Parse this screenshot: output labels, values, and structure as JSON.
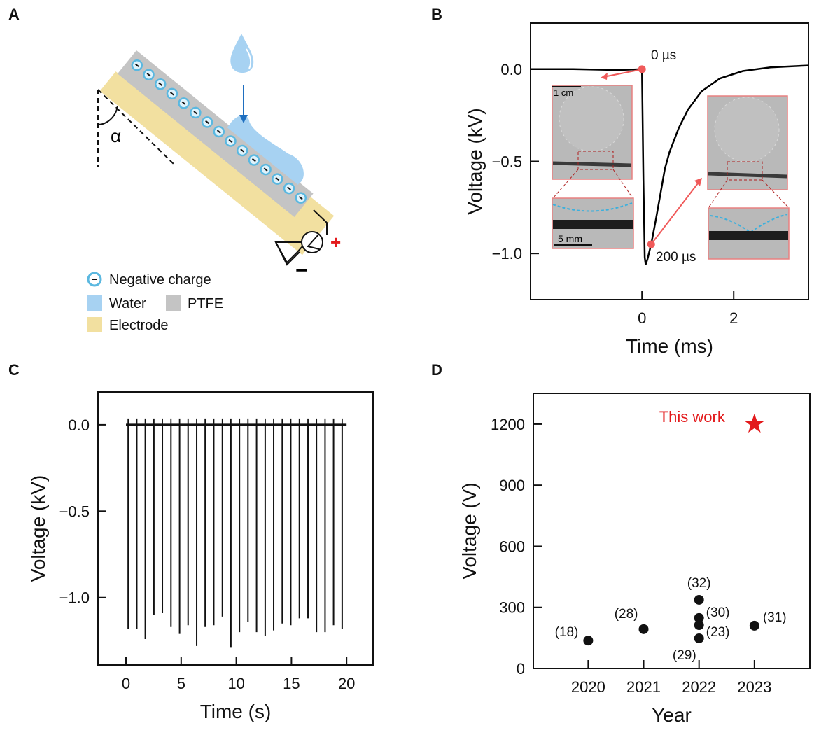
{
  "panel_labels": [
    "A",
    "B",
    "C",
    "D"
  ],
  "panel_a": {
    "angle_label": "α",
    "plus_label": "+",
    "minus_label": "−",
    "legend": [
      {
        "label": "Negative charge",
        "color": "#a8d8f0"
      },
      {
        "label": "Water",
        "color": "#a7d2f2"
      },
      {
        "label": "PTFE",
        "color": "#c4c4c4"
      },
      {
        "label": "Electrode",
        "color": "#f2e0a0"
      }
    ],
    "colors": {
      "ptfe": "#c4c4c4",
      "electrode": "#f2e0a0",
      "water": "#a7d2f2",
      "arrow": "#1f6fc0",
      "plus": "#e31a1c"
    }
  },
  "chart_data": [
    {
      "panel": "B",
      "type": "line",
      "xlabel": "Time (ms)",
      "ylabel": "Voltage (kV)",
      "xlim": [
        -2.43,
        3.63
      ],
      "ylim": [
        -1.25,
        0.25
      ],
      "xticks": [
        0,
        2
      ],
      "yticks": [
        0.0,
        -0.5,
        -1.0
      ],
      "ytick_labels": [
        "0.0",
        "−0.5",
        "−1.0"
      ],
      "grid": false,
      "series": [
        {
          "x": [
            -2.43,
            -1.5,
            -0.5,
            0.0,
            0.03,
            0.06,
            0.08,
            0.12,
            0.2,
            0.3,
            0.4,
            0.5,
            0.6,
            0.8,
            1.0,
            1.3,
            1.7,
            2.2,
            2.8,
            3.63
          ],
          "y": [
            0.0,
            0.0,
            -0.005,
            0.0,
            -0.6,
            -1.02,
            -1.06,
            -1.03,
            -0.95,
            -0.82,
            -0.68,
            -0.54,
            -0.45,
            -0.32,
            -0.22,
            -0.12,
            -0.05,
            -0.01,
            0.01,
            0.02
          ],
          "color": "#000000"
        }
      ],
      "markers": [
        {
          "x": 0,
          "y": 0,
          "label": "0 µs"
        },
        {
          "x": 0.2,
          "y": -0.95,
          "label": "200 µs"
        }
      ],
      "marker_color": "#f05a5a",
      "inset_scale_labels": [
        "1 cm",
        "5 mm"
      ]
    },
    {
      "panel": "C",
      "type": "line",
      "xlabel": "Time (s)",
      "ylabel": "Voltage (kV)",
      "xlim": [
        -2.54,
        22.4
      ],
      "ylim": [
        -1.39,
        0.19
      ],
      "xticks": [
        0,
        5,
        10,
        15,
        20
      ],
      "yticks": [
        0.0,
        -0.5,
        -1.0
      ],
      "ytick_labels": [
        "0.0",
        "−0.5",
        "−1.0"
      ],
      "grid": false,
      "baseline": 0.0,
      "spike_times": [
        0.2,
        0.98,
        1.75,
        2.53,
        3.3,
        4.08,
        4.86,
        5.63,
        6.41,
        7.18,
        7.96,
        8.74,
        9.51,
        10.29,
        11.06,
        11.84,
        12.62,
        13.39,
        14.17,
        14.94,
        15.72,
        16.5,
        17.27,
        18.05,
        18.82,
        19.6
      ],
      "spike_minima": [
        -1.18,
        -1.18,
        -1.24,
        -1.1,
        -1.09,
        -1.17,
        -1.21,
        -1.16,
        -1.28,
        -1.17,
        -1.16,
        -1.11,
        -1.29,
        -1.2,
        -1.14,
        -1.2,
        -1.22,
        -1.19,
        -1.15,
        -1.16,
        -1.12,
        -1.12,
        -1.2,
        -1.2,
        -1.16,
        -1.18
      ]
    },
    {
      "panel": "D",
      "type": "scatter",
      "xlabel": "Year",
      "ylabel": "Voltage (V)",
      "xlim": [
        2019.01,
        2024.0
      ],
      "ylim": [
        0,
        1351
      ],
      "xticks": [
        2020,
        2021,
        2022,
        2023
      ],
      "yticks": [
        0,
        300,
        600,
        900,
        1200
      ],
      "grid": false,
      "points": [
        {
          "x": 2020,
          "y": 137,
          "label": "(18)"
        },
        {
          "x": 2021,
          "y": 193,
          "label": "(28)"
        },
        {
          "x": 2022,
          "y": 337,
          "label": "(32)"
        },
        {
          "x": 2022,
          "y": 248,
          "label": "(30)"
        },
        {
          "x": 2022,
          "y": 213,
          "label": "(23)"
        },
        {
          "x": 2022,
          "y": 148,
          "label": "(29)"
        },
        {
          "x": 2023,
          "y": 210,
          "label": "(31)"
        }
      ],
      "highlight": {
        "x": 2023,
        "y": 1200,
        "label": "This work",
        "color": "#e31a1c",
        "marker": "star"
      }
    }
  ]
}
